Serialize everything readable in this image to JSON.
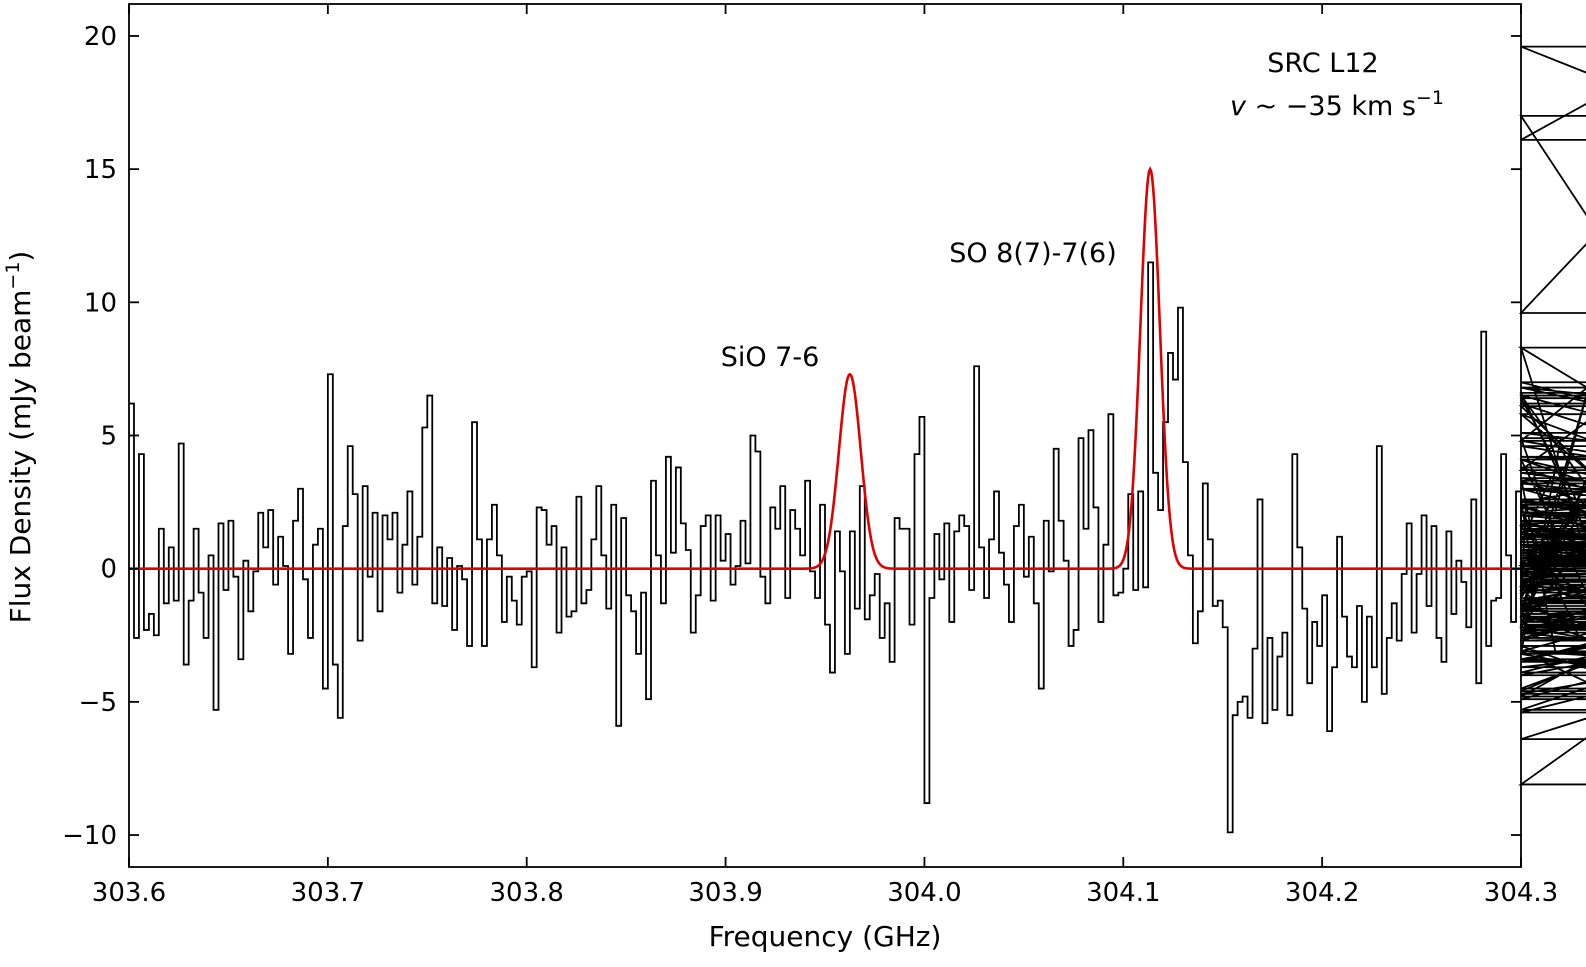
{
  "chart_data": {
    "type": "line",
    "title": "",
    "xlabel": "Frequency (GHz)",
    "ylabel": "Flux Density (mJy beam",
    "ylabel_unit_sup": "−1",
    "ylabel_close": ")",
    "xlim": [
      303.6,
      304.3
    ],
    "ylim": [
      -11.2,
      21.2
    ],
    "x_ticks": [
      303.6,
      303.7,
      303.8,
      303.9,
      304.0,
      304.1,
      304.2,
      304.3
    ],
    "x_tick_labels": [
      "303.6",
      "303.7",
      "303.8",
      "303.9",
      "304.0",
      "304.1",
      "304.2",
      "304.3"
    ],
    "y_ticks": [
      -10,
      -5,
      0,
      5,
      10,
      15,
      20
    ],
    "y_tick_labels": [
      "−10",
      "−5",
      "0",
      "5",
      "10",
      "15",
      "20"
    ],
    "grid": false,
    "annotations": {
      "source": "SRC L12",
      "velocity_var": "v",
      "velocity_text": " ~ −35 km s",
      "velocity_sup": "−1",
      "line1": "SiO 7-6",
      "line2": "SO 8(7)-7(6)"
    },
    "series": [
      {
        "style": "steps",
        "color": "#000000",
        "x_start": 303.6,
        "x_step": 0.0025,
        "values": [
          6.2,
          -2.6,
          4.3,
          -2.3,
          -1.7,
          -2.5,
          1.5,
          -1.3,
          0.8,
          -1.2,
          4.7,
          -3.6,
          -1.2,
          1.5,
          -0.9,
          -2.6,
          0.5,
          -5.3,
          1.7,
          -0.8,
          1.8,
          -0.3,
          -3.4,
          0.3,
          -1.6,
          -0.1,
          2.1,
          0.8,
          2.2,
          -0.6,
          1.2,
          0.1,
          -3.2,
          1.8,
          3.0,
          -0.4,
          -2.6,
          0.9,
          1.5,
          -4.5,
          7.3,
          -3.6,
          -5.6,
          1.6,
          4.6,
          2.8,
          -2.7,
          3.1,
          -0.3,
          2.1,
          -1.6,
          2.0,
          1.1,
          2.1,
          -0.9,
          0.9,
          2.9,
          -0.6,
          1.2,
          5.3,
          6.5,
          -1.3,
          0.8,
          -1.4,
          0.4,
          -2.3,
          0.1,
          -0.4,
          -2.9,
          5.5,
          1.1,
          -2.9,
          1.1,
          2.4,
          0.5,
          -2.0,
          -0.3,
          -1.2,
          -2.1,
          -0.3,
          -0.1,
          -3.7,
          2.3,
          2.2,
          0.9,
          1.6,
          -2.4,
          0.8,
          -1.8,
          -1.6,
          2.7,
          -1.3,
          -0.8,
          1.1,
          3.1,
          0.5,
          -1.5,
          2.4,
          -5.9,
          1.9,
          -1.0,
          -1.6,
          -3.2,
          -0.9,
          -4.9,
          3.3,
          0.5,
          -1.3,
          4.2,
          0.6,
          3.8,
          1.7,
          0.7,
          -2.4,
          -1.0,
          1.6,
          2.0,
          -1.2,
          2.0,
          0.3,
          1.3,
          -0.6,
          0.1,
          1.8,
          0.2,
          5.0,
          4.4,
          -0.3,
          -1.3,
          2.3,
          1.5,
          3.1,
          -1.1,
          2.2,
          1.5,
          0.5,
          3.3,
          -0.1,
          -1.1,
          2.4,
          -2.1,
          -3.9,
          1.4,
          -0.1,
          -3.2,
          1.4,
          -1.5,
          3.1,
          -1.9,
          -1.0,
          -0.2,
          -2.6,
          -1.3,
          -3.5,
          1.9,
          1.5,
          1.5,
          -2.1,
          4.3,
          5.7,
          -8.8,
          -1.1,
          1.3,
          -0.4,
          1.7,
          -2.0,
          1.4,
          2.0,
          1.6,
          -0.8,
          7.6,
          0.8,
          -1.1,
          1.1,
          2.9,
          0.6,
          -0.6,
          -2.0,
          1.6,
          2.4,
          -0.3,
          1.2,
          -1.3,
          -4.5,
          1.8,
          -0.1,
          4.5,
          1.8,
          0.3,
          -2.9,
          -2.3,
          4.9,
          1.5,
          5.2,
          2.3,
          -2.0,
          0.9,
          5.8,
          -1.0,
          -0.9,
          0.0,
          2.8,
          -0.8,
          2.9,
          -0.7,
          11.5,
          3.6,
          2.2,
          5.5,
          8.1,
          7.1,
          9.8,
          4.0,
          0.5,
          -2.8,
          -1.6,
          3.2,
          1.1,
          -1.4,
          -1.2,
          -2.2,
          -9.9,
          -5.5,
          -5.0,
          -4.8,
          -5.6,
          -3.0,
          2.6,
          -5.8,
          -2.6,
          -5.3,
          -3.3,
          -2.4,
          -5.5,
          4.3,
          0.8,
          -1.5,
          -4.3,
          -2.0,
          -2.9,
          -1.0,
          -6.1,
          -3.7,
          1.2,
          -1.8,
          -3.3,
          -3.7,
          -1.4,
          -5.0,
          -1.8,
          -3.7,
          4.6,
          -4.7,
          -2.6,
          -1.3,
          -2.7,
          -0.2,
          1.7,
          -2.4,
          -0.2,
          2.0,
          -1.4,
          1.6,
          -2.6,
          -3.5,
          1.4,
          -1.7,
          0.3,
          -0.5,
          -2.2,
          2.6,
          -4.3,
          8.9,
          -2.9,
          -1.2,
          -1.1,
          4.3,
          0.5,
          -2.0,
          2.9,
          -1.4,
          2.6,
          0.2,
          -0.7,
          -1.5,
          1.0,
          3.4,
          -3.2,
          4.9,
          0.1,
          -1.1,
          2.3,
          -2.7,
          6.4,
          1.6,
          -1.8,
          8.3,
          -1.8,
          4.1,
          -3.1,
          -2.1,
          6.6,
          -2.2,
          3.7,
          7.0,
          5.8,
          1.7,
          -0.8,
          6.5,
          -0.9,
          8.3,
          4.8,
          9.6,
          16.1,
          19.6,
          17.0,
          6.8,
          6.1,
          -0.6,
          -0.2,
          -2.4,
          0.3,
          -3.5,
          -1.3,
          -4.5,
          -1.4,
          -3.9,
          -1.8,
          -3.2,
          -4.9,
          -2.4,
          -3.4,
          -1.7,
          -5.4,
          -2.9,
          -6.4,
          -3.1,
          -8.1,
          -0.4,
          0.5,
          0.1,
          2.4,
          -1.6,
          3.3,
          -0.7,
          -2.6,
          0.1,
          6.2,
          2.1,
          3.0,
          -0.6,
          4.6,
          2.6,
          0.1,
          0.0,
          -0.5,
          4.1,
          0.9,
          -3.1,
          -4.0,
          -1.3,
          -0.6,
          -2.2,
          -4.8,
          3.8,
          -1.4,
          1.5,
          -2.3,
          0.9,
          -1.1,
          -1.2,
          -1.2,
          1.8,
          -3.1,
          -3.4,
          0.1,
          -0.1,
          -1.5,
          -1.6,
          4.1,
          -2.4,
          -4.6,
          3.4,
          0.6,
          -2.3,
          2.3,
          -2.2,
          -2.7,
          -2.3,
          -2.2,
          -1.5,
          -3.4,
          -4.7,
          -1.2,
          0.2,
          1.7,
          -2.4,
          5.1,
          2.6,
          -2.2,
          0.9,
          -3.4,
          0.8,
          1.4,
          -5.3,
          2.5,
          6.5,
          0.5,
          -1.9,
          0.8,
          2.1,
          0.2,
          0.7,
          1.1,
          5.8,
          -3.7,
          -0.9,
          2.4,
          2.1,
          1.2,
          0.7,
          -2.7,
          4.8,
          0.4,
          1.3,
          -1.2,
          3.0,
          0.3,
          2.5,
          0.4,
          -1.3,
          -1.2,
          -2.0,
          2.4,
          3.6,
          -0.2,
          6.8,
          0.5,
          -0.3,
          1.2,
          4.2,
          3.2,
          0.0,
          2.0,
          -0.7,
          3.0,
          1.5,
          -2.4,
          1.5,
          -0.1,
          0.1,
          0.7,
          0.4,
          1.3,
          0.2,
          -0.5,
          0.7,
          1.8,
          0.3,
          1.0,
          0.1,
          0.8,
          0.5
        ]
      },
      {
        "style": "gaussian_fit",
        "color": "#e00000",
        "x_min": 303.6,
        "x_max": 304.3,
        "components": [
          {
            "label": "SiO 7-6",
            "center": 303.9625,
            "amplitude": 7.3,
            "sigma": 0.0055
          },
          {
            "label": "SO 8(7)-7(6)",
            "center": 304.1135,
            "amplitude": 15.0,
            "sigma": 0.0049
          }
        ]
      }
    ]
  }
}
